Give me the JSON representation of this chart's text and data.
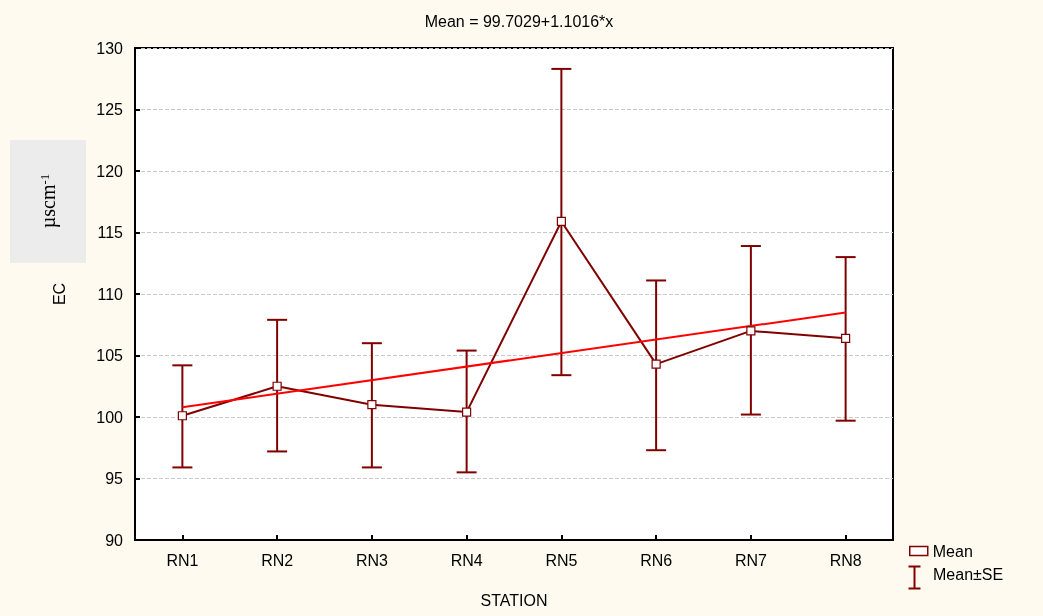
{
  "chart_data": {
    "type": "line",
    "title": "Mean = 99.7029+1.1016*x",
    "xlabel": "STATION",
    "ylabel": "EC",
    "annotations": [
      "µscm$^{-1}$",
      "Mean±SE"
    ],
    "categories": [
      "RN1",
      "RN2",
      "RN3",
      "RN4",
      "RN5",
      "RN6",
      "RN7",
      "RN8"
    ],
    "ylim": [
      90,
      130
    ],
    "yticks": [
      90,
      95,
      100,
      105,
      110,
      115,
      120,
      125,
      130
    ],
    "series": [
      {
        "name": "Mean",
        "color": "#800000",
        "marker": "square",
        "values": [
          100.1,
          102.5,
          101.0,
          100.4,
          115.9,
          104.3,
          107.0,
          106.4
        ],
        "errors": [
          [
            95.9,
            104.2
          ],
          [
            97.2,
            107.9
          ],
          [
            95.9,
            106.0
          ],
          [
            95.5,
            105.4
          ],
          [
            103.4,
            128.3
          ],
          [
            97.3,
            111.1
          ],
          [
            100.2,
            113.9
          ],
          [
            99.7,
            113.0
          ]
        ]
      },
      {
        "type": "line",
        "color": "#ff0000",
        "marker": "none",
        "x": [
          "RN1",
          "RN8"
        ],
        "values": [
          100.8,
          108.5
        ]
      }
    ],
    "grid": "y",
    "legend": "bottom right"
  }
}
